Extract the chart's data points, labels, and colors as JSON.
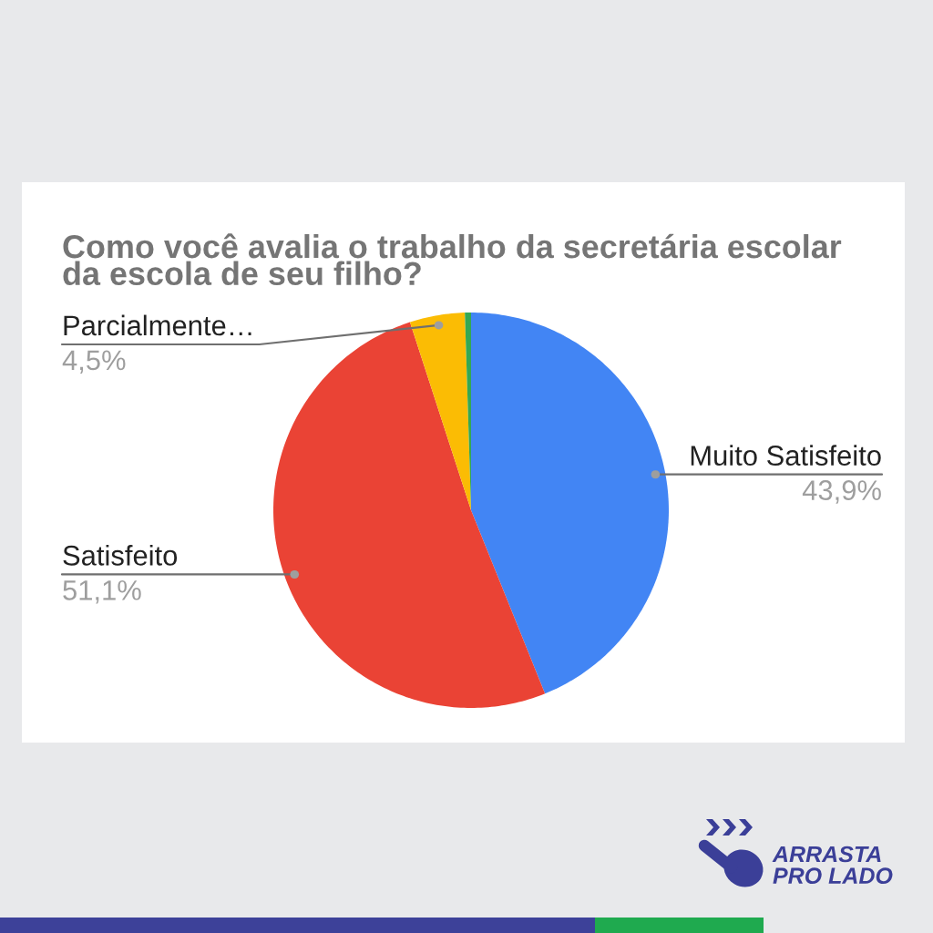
{
  "chart_data": {
    "type": "pie",
    "title": "Como você avalia o trabalho da secretária escolar\nda escola de seu filho?",
    "categories": [
      "Muito Satisfeito",
      "Satisfeito",
      "Parcialmente…",
      null
    ],
    "values": [
      43.9,
      51.1,
      4.5,
      0.5
    ],
    "colors": [
      "#4285f4",
      "#ea4335",
      "#fbbc04",
      "#34a853"
    ],
    "value_labels": [
      "43,9%",
      "51,1%",
      "4,5%",
      null
    ],
    "annotations": [
      "ARRASTA\nPRO LADO"
    ]
  }
}
